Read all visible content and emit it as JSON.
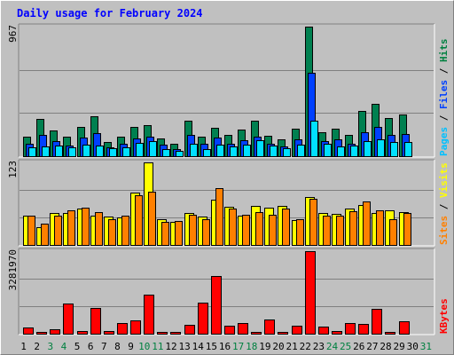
{
  "title": "Daily usage for February 2024",
  "chart_data": [
    {
      "type": "bar",
      "panel": "hits-files-pages",
      "ymax_label": "967",
      "ymax": 967,
      "side_label": [
        {
          "text": "Pages",
          "color": "#00c0ff"
        },
        {
          "text": " / ",
          "color": "#000000"
        },
        {
          "text": "Files",
          "color": "#0040ff"
        },
        {
          "text": " / ",
          "color": "#000000"
        },
        {
          "text": "Hits",
          "color": "#008040"
        }
      ],
      "categories": [
        "1",
        "2",
        "3",
        "4",
        "5",
        "6",
        "7",
        "8",
        "9",
        "10",
        "11",
        "12",
        "13",
        "14",
        "15",
        "16",
        "17",
        "18",
        "19",
        "20",
        "21",
        "22",
        "23",
        "24",
        "25",
        "26",
        "27",
        "28",
        "29",
        "30",
        "31"
      ],
      "weekend_days": [
        "3",
        "4",
        "10",
        "11",
        "17",
        "18",
        "24",
        "25",
        "31"
      ],
      "series": [
        {
          "name": "Hits",
          "color": "#008050",
          "values": [
            145,
            277,
            189,
            145,
            217,
            301,
            108,
            149,
            221,
            231,
            135,
            90,
            262,
            145,
            214,
            160,
            197,
            262,
            150,
            128,
            203,
            967,
            177,
            208,
            162,
            336,
            391,
            282,
            309,
            0,
            0
          ]
        },
        {
          "name": "Files",
          "color": "#0040ff",
          "values": [
            95,
            162,
            115,
            81,
            136,
            171,
            68,
            92,
            132,
            149,
            84,
            54,
            161,
            90,
            138,
            95,
            117,
            147,
            96,
            76,
            123,
            624,
            110,
            126,
            95,
            177,
            216,
            156,
            165,
            0,
            0
          ]
        },
        {
          "name": "Pages",
          "color": "#00e0ff",
          "values": [
            65,
            74,
            79,
            67,
            89,
            81,
            57,
            66,
            101,
            114,
            55,
            42,
            96,
            53,
            85,
            76,
            86,
            117,
            80,
            62,
            87,
            267,
            93,
            70,
            82,
            115,
            125,
            103,
            103,
            0,
            0
          ]
        }
      ]
    },
    {
      "type": "bar",
      "panel": "visits-sites",
      "ymax_label": "123",
      "ymax": 123,
      "side_label": [
        {
          "text": "Sites",
          "color": "#ff8000"
        },
        {
          "text": " / ",
          "color": "#000000"
        },
        {
          "text": "Visits",
          "color": "#ffff00"
        }
      ],
      "categories": [
        "1",
        "2",
        "3",
        "4",
        "5",
        "6",
        "7",
        "8",
        "9",
        "10",
        "11",
        "12",
        "13",
        "14",
        "15",
        "16",
        "17",
        "18",
        "19",
        "20",
        "21",
        "22",
        "23",
        "24",
        "25",
        "26",
        "27",
        "28",
        "29",
        "30",
        "31"
      ],
      "series": [
        {
          "name": "Visits",
          "color": "#ffff00",
          "values": [
            43,
            27,
            47,
            47,
            54,
            44,
            42,
            41,
            78,
            123,
            38,
            35,
            47,
            42,
            68,
            57,
            43,
            58,
            55,
            58,
            37,
            71,
            47,
            46,
            54,
            60,
            48,
            52,
            49,
            0,
            0
          ]
        },
        {
          "name": "Sites",
          "color": "#ff8000",
          "values": [
            43,
            32,
            44,
            52,
            55,
            49,
            39,
            43,
            74,
            80,
            34,
            36,
            45,
            39,
            85,
            54,
            45,
            49,
            45,
            54,
            38,
            69,
            44,
            43,
            50,
            65,
            52,
            39,
            47,
            0,
            0
          ]
        }
      ]
    },
    {
      "type": "bar",
      "panel": "kbytes",
      "ymax_label": "3281970",
      "ymax": 3281970,
      "side_label": [
        {
          "text": "KBytes",
          "color": "#ff0000"
        }
      ],
      "categories": [
        "1",
        "2",
        "3",
        "4",
        "5",
        "6",
        "7",
        "8",
        "9",
        "10",
        "11",
        "12",
        "13",
        "14",
        "15",
        "16",
        "17",
        "18",
        "19",
        "20",
        "21",
        "22",
        "23",
        "24",
        "25",
        "26",
        "27",
        "28",
        "29",
        "30",
        "31"
      ],
      "series": [
        {
          "name": "KBytes",
          "color": "#ff0000",
          "values": [
            230000,
            60000,
            160000,
            1200000,
            110000,
            1030000,
            120000,
            420000,
            540000,
            1570000,
            30000,
            50000,
            340000,
            1250000,
            2300000,
            310000,
            420000,
            30000,
            550000,
            30000,
            310000,
            3281970,
            280000,
            90000,
            420000,
            400000,
            1000000,
            60000,
            510000,
            0,
            0
          ]
        }
      ]
    }
  ]
}
